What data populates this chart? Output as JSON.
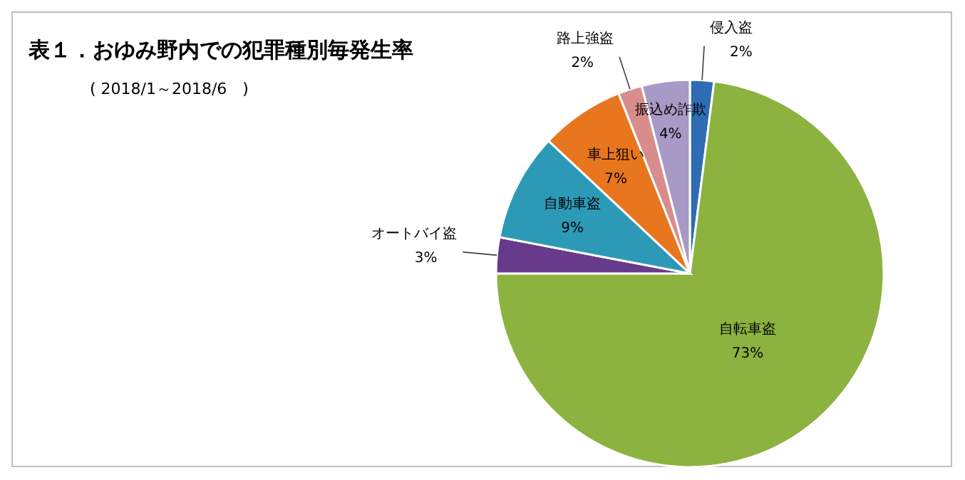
{
  "chart_data": {
    "type": "pie",
    "title": "表１．おゆみ野内での犯罪種別毎発生率",
    "subtitle": "( 2018/1～2018/6　)",
    "categories": [
      "侵入盗",
      "自転車盗",
      "オートバイ盗",
      "自動車盗",
      "車上狙い",
      "路上強盗",
      "振込め詐欺"
    ],
    "values": [
      2,
      73,
      3,
      9,
      7,
      2,
      4
    ],
    "value_labels": [
      "2%",
      "73%",
      "3%",
      "9%",
      "7%",
      "2%",
      "4%"
    ],
    "colors": [
      "#2e6db4",
      "#8cb23f",
      "#683a8c",
      "#2c9ab7",
      "#e8761e",
      "#d88c8c",
      "#a79ac6"
    ]
  }
}
